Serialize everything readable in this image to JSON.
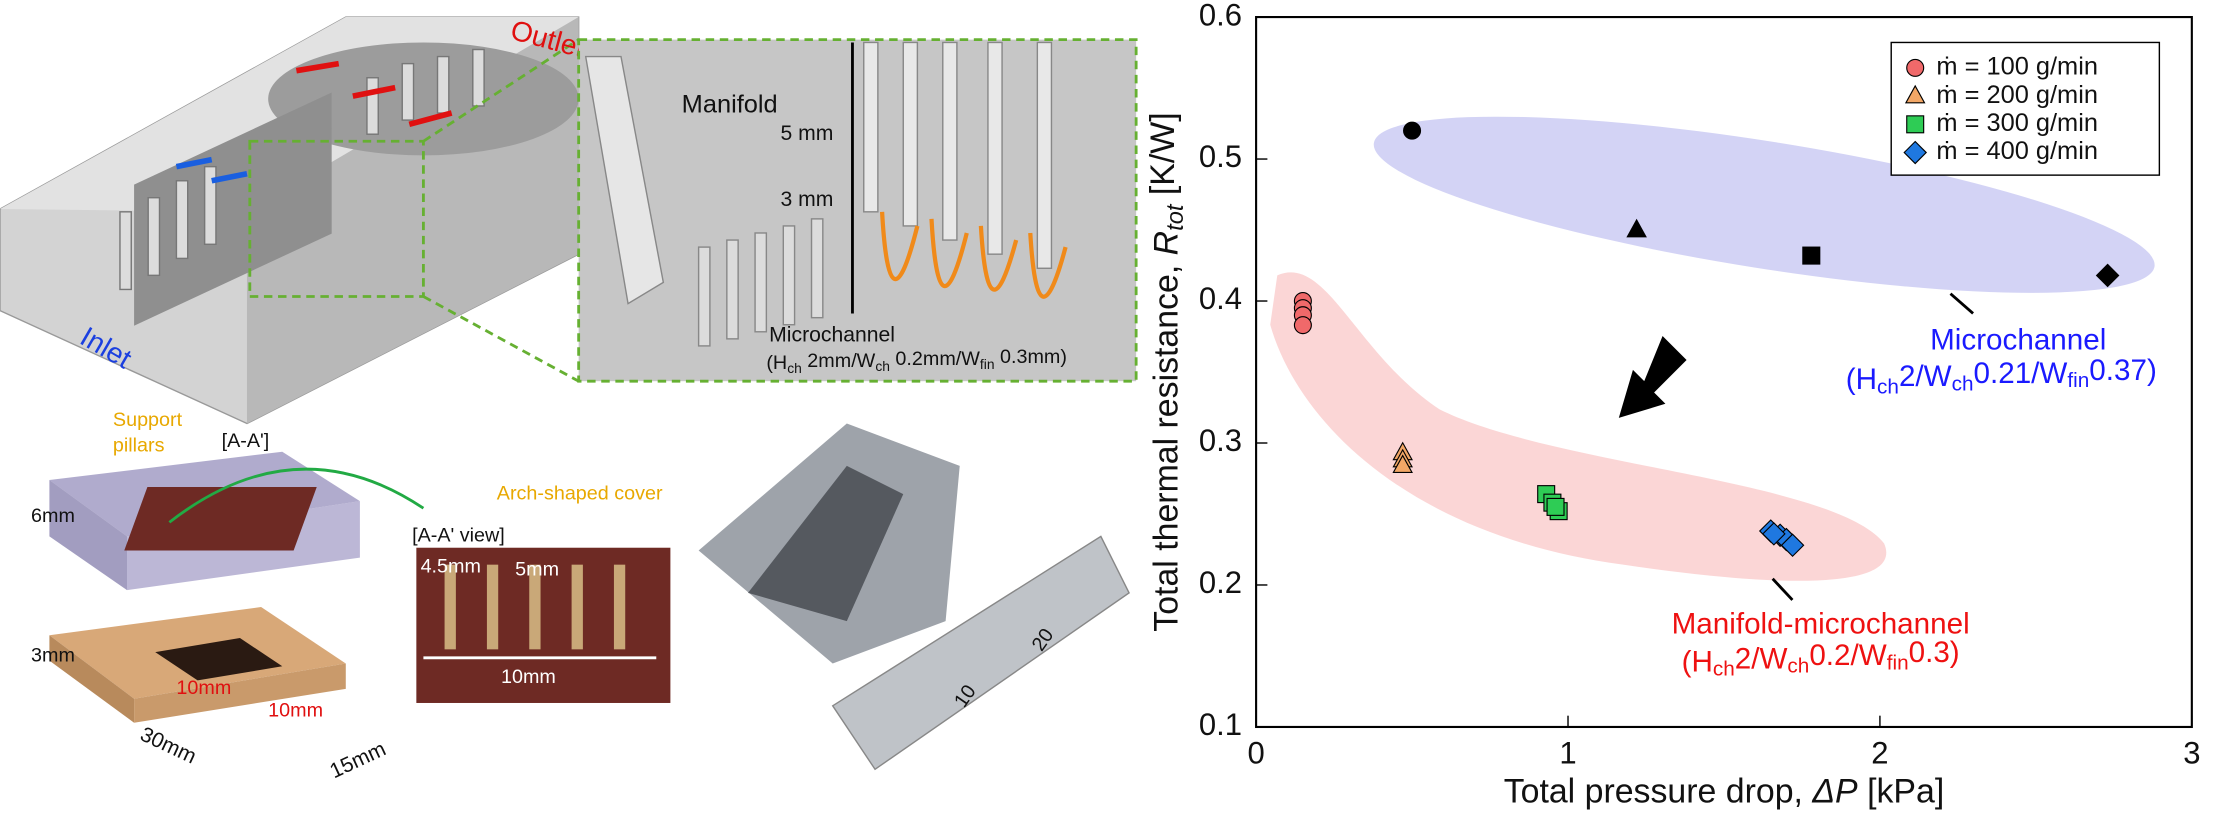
{
  "figure": {
    "outlet": "Outlet",
    "inlet": "Inlet",
    "manifold": "Manifold",
    "h5": "5 mm",
    "h3": "3 mm",
    "microchannel": "Microchannel",
    "microchannel_dims": [
      {
        "text": "(H"
      },
      {
        "text": "ch",
        "sub": true
      },
      {
        "text": " 2mm/W"
      },
      {
        "text": "ch",
        "sub": true
      },
      {
        "text": " 0.2mm/W"
      },
      {
        "text": "fin",
        "sub": true
      },
      {
        "text": " 0.3mm)"
      }
    ],
    "support_pillars": [
      "Support",
      "pillars"
    ],
    "section": "[A-A']",
    "dim_6": "6mm",
    "dim_3": "3mm",
    "dim_30": "30mm",
    "dim_15": "15mm",
    "heater_a": "10mm",
    "heater_b": "10mm",
    "view": "[A-A' view]",
    "arch": "Arch-shaped cover",
    "dim_45": "4.5mm",
    "dim_5": "5mm",
    "dim_10": "10mm",
    "ruler_10": "10",
    "ruler_20": "20"
  },
  "chart_data": {
    "type": "scatter",
    "xlabel": [
      {
        "text": "Total pressure drop, "
      },
      {
        "text": "ΔP",
        "italic": true
      },
      {
        "text": " [kPa]"
      }
    ],
    "ylabel": [
      {
        "text": "Total thermal resistance, "
      },
      {
        "text": "R",
        "italic": true
      },
      {
        "text": "tot",
        "sub": true,
        "italic": true
      },
      {
        "text": " [K/W]"
      }
    ],
    "xlim": [
      0,
      3
    ],
    "xticks": [
      0,
      1,
      2,
      3
    ],
    "ylim": [
      0.1,
      0.6
    ],
    "yticks": [
      0.1,
      0.2,
      0.3,
      0.4,
      0.5,
      0.6
    ],
    "legend": "upper right",
    "series": [
      {
        "name": "ṁ = 100 g/min",
        "color": "#f0696a",
        "marker": "circle",
        "x": [
          0.15,
          0.15,
          0.15,
          0.15
        ],
        "values": [
          0.4,
          0.395,
          0.39,
          0.383
        ]
      },
      {
        "name": "ṁ = 200 g/min",
        "color": "#f2a766",
        "marker": "triangle",
        "x": [
          0.47,
          0.47,
          0.47
        ],
        "values": [
          0.293,
          0.288,
          0.284
        ]
      },
      {
        "name": "ṁ = 300 g/min",
        "color": "#2ecc55",
        "marker": "square",
        "x": [
          0.93,
          0.95,
          0.97,
          0.96
        ],
        "values": [
          0.264,
          0.258,
          0.252,
          0.255
        ]
      },
      {
        "name": "ṁ = 400 g/min",
        "color": "#1f78e0",
        "marker": "diamond",
        "x": [
          1.65,
          1.68,
          1.7,
          1.72,
          1.66
        ],
        "values": [
          0.238,
          0.235,
          0.232,
          0.228,
          0.236
        ]
      }
    ],
    "reference_points": {
      "color": "#000000",
      "markers": [
        "circle",
        "triangle",
        "square",
        "diamond"
      ],
      "x": [
        0.5,
        1.22,
        1.78,
        2.73
      ],
      "values": [
        0.52,
        0.45,
        0.432,
        0.418
      ]
    },
    "annotations": [
      {
        "color": "#1a1aff",
        "text": [
          {
            "text": "Microchannel"
          }
        ]
      },
      {
        "color": "#1a1aff",
        "text": [
          {
            "text": "(H"
          },
          {
            "text": "ch",
            "sub": true
          },
          {
            "text": "2/W"
          },
          {
            "text": "ch",
            "sub": true
          },
          {
            "text": "0.21/W"
          },
          {
            "text": "fin",
            "sub": true
          },
          {
            "text": "0.37)"
          }
        ]
      },
      {
        "color": "#ee1111",
        "text": [
          {
            "text": "Manifold-microchannel"
          }
        ]
      },
      {
        "color": "#ee1111",
        "text": [
          {
            "text": "(H"
          },
          {
            "text": "ch",
            "sub": true
          },
          {
            "text": "2/W"
          },
          {
            "text": "ch",
            "sub": true
          },
          {
            "text": "0.2/W"
          },
          {
            "text": "fin",
            "sub": true
          },
          {
            "text": "0.3)"
          }
        ]
      }
    ]
  }
}
